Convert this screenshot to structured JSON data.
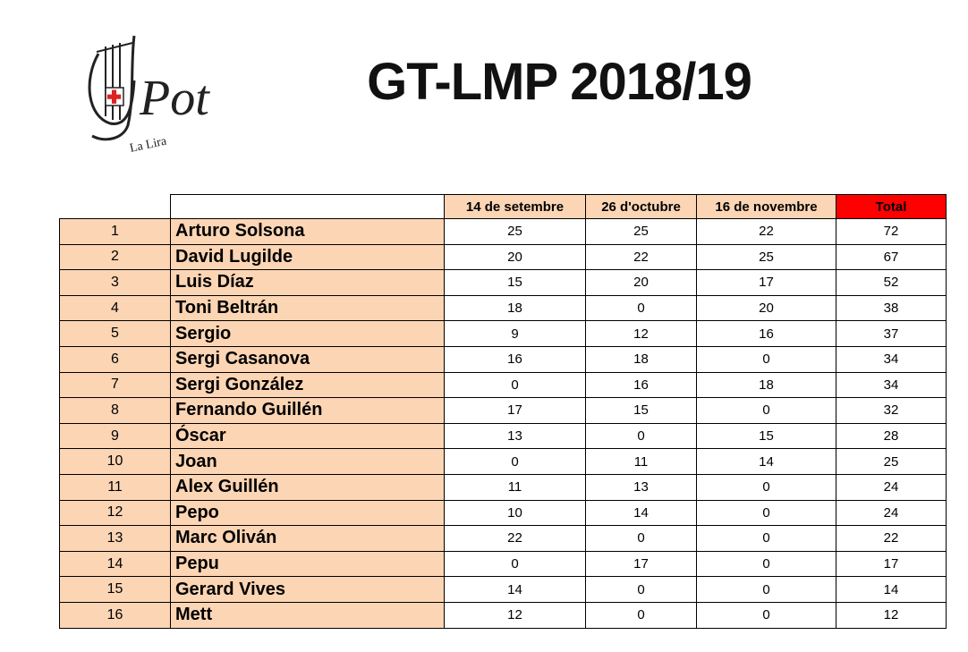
{
  "header": {
    "title": "GT-LMP 2018/19"
  },
  "logo": {
    "word": "Pot",
    "caption": "La Lira"
  },
  "table": {
    "columns": [
      "14 de setembre",
      "26 d'octubre",
      "16 de novembre",
      "Total"
    ],
    "rows": [
      [
        1,
        "Arturo Solsona",
        25,
        25,
        22,
        72
      ],
      [
        2,
        "David Lugilde",
        20,
        22,
        25,
        67
      ],
      [
        3,
        "Luis Díaz",
        15,
        20,
        17,
        52
      ],
      [
        4,
        "Toni Beltrán",
        18,
        0,
        20,
        38
      ],
      [
        5,
        "Sergio",
        9,
        12,
        16,
        37
      ],
      [
        6,
        "Sergi Casanova",
        16,
        18,
        0,
        34
      ],
      [
        7,
        "Sergi González",
        0,
        16,
        18,
        34
      ],
      [
        8,
        "Fernando Guillén",
        17,
        15,
        0,
        32
      ],
      [
        9,
        "Óscar",
        13,
        0,
        15,
        28
      ],
      [
        10,
        "Joan",
        0,
        11,
        14,
        25
      ],
      [
        11,
        "Alex Guillén",
        11,
        13,
        0,
        24
      ],
      [
        12,
        "Pepo",
        10,
        14,
        0,
        24
      ],
      [
        13,
        "Marc Oliván",
        22,
        0,
        0,
        22
      ],
      [
        14,
        "Pepu",
        0,
        17,
        0,
        17
      ],
      [
        15,
        "Gerard Vives",
        14,
        0,
        0,
        14
      ],
      [
        16,
        "Mett",
        12,
        0,
        0,
        12
      ]
    ]
  }
}
